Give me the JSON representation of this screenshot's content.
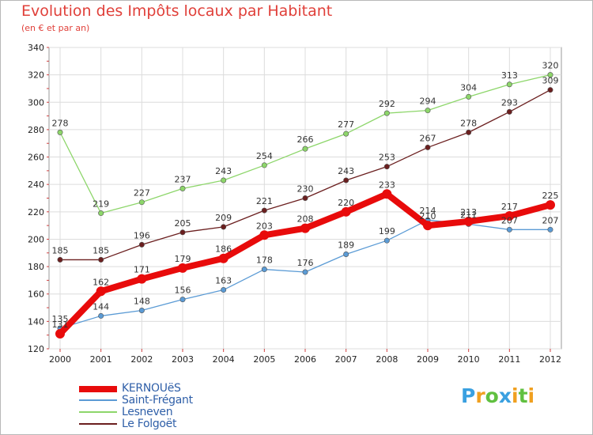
{
  "chart_data": {
    "type": "line",
    "title": "Evolution des Impôts locaux par Habitant",
    "subtitle": "(en € et par an)",
    "xlabel": "",
    "ylabel": "",
    "categories": [
      "2000",
      "2001",
      "2002",
      "2003",
      "2004",
      "2005",
      "2006",
      "2007",
      "2008",
      "2009",
      "2010",
      "2011",
      "2012"
    ],
    "ylim": [
      120,
      340
    ],
    "yticks": [
      120,
      140,
      160,
      180,
      200,
      220,
      240,
      260,
      280,
      300,
      320,
      340
    ],
    "grid": true,
    "legend_position": "bottom-left",
    "series": [
      {
        "name": "KERNOUëS",
        "color": "#e80b0b",
        "values": [
          131,
          162,
          171,
          179,
          186,
          203,
          208,
          220,
          233,
          210,
          213,
          217,
          225
        ]
      },
      {
        "name": "Saint-Frégant",
        "color": "#5b9bd5",
        "values": [
          135,
          144,
          148,
          156,
          163,
          178,
          176,
          189,
          199,
          214,
          211,
          207,
          207
        ]
      },
      {
        "name": "Lesneven",
        "color": "#8dd66a",
        "values": [
          278,
          219,
          227,
          237,
          243,
          254,
          266,
          277,
          292,
          294,
          304,
          313,
          320
        ]
      },
      {
        "name": "Le Folgoët",
        "color": "#6b1f1f",
        "values": [
          185,
          185,
          196,
          205,
          209,
          221,
          230,
          243,
          253,
          267,
          278,
          293,
          309
        ]
      }
    ]
  },
  "logo": {
    "letters": [
      "P",
      "r",
      "o",
      "x",
      "i",
      "t",
      "i"
    ],
    "colors": [
      "#3aa0e0",
      "#f0a020",
      "#60c040",
      "#3aa0e0",
      "#f0a020",
      "#60c040",
      "#f0a020"
    ]
  }
}
